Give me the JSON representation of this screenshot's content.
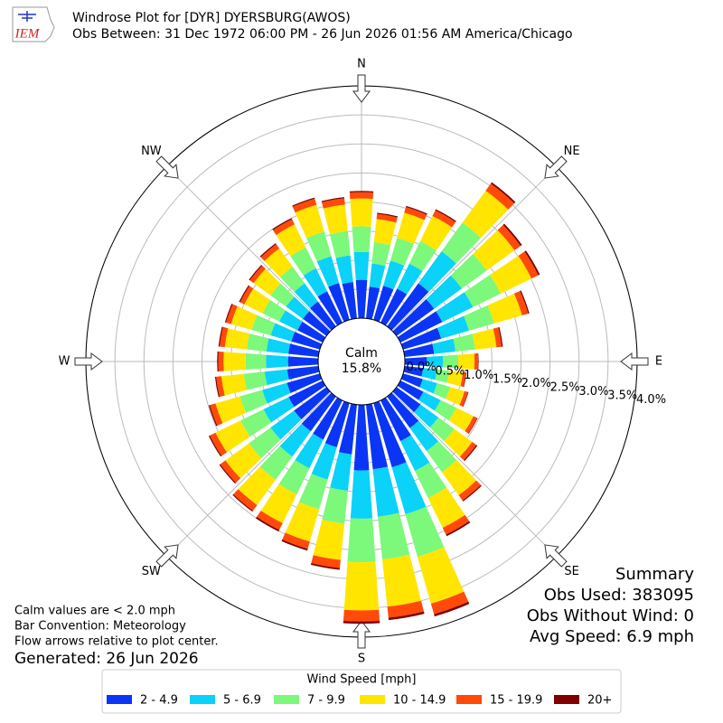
{
  "chart_data": {
    "type": "windrose",
    "logo": "IEM",
    "title": "Windrose Plot for [DYR] DYERSBURG(AWOS)",
    "subtitle": "Obs Between: 31 Dec 1972 06:00 PM - 26 Jun 2026 01:56 AM America/Chicago",
    "x": [
      0,
      10,
      20,
      30,
      40,
      50,
      60,
      70,
      80,
      90,
      100,
      110,
      120,
      130,
      140,
      150,
      160,
      170,
      180,
      190,
      200,
      210,
      220,
      230,
      240,
      250,
      260,
      270,
      280,
      290,
      300,
      310,
      320,
      330,
      340,
      350
    ],
    "xticks": [
      {
        "value": 0,
        "label": "N"
      },
      {
        "value": 45,
        "label": "NE"
      },
      {
        "value": 90,
        "label": "E"
      },
      {
        "value": 135,
        "label": "SE"
      },
      {
        "value": 180,
        "label": "S"
      },
      {
        "value": 225,
        "label": "SW"
      },
      {
        "value": 270,
        "label": "W"
      },
      {
        "value": 315,
        "label": "NW"
      }
    ],
    "rlim": [
      0,
      4.0
    ],
    "rticks": [
      {
        "value": 0,
        "label": "0.0%"
      },
      {
        "value": 0.5,
        "label": "0.5%"
      },
      {
        "value": 1.0,
        "label": "1.0%"
      },
      {
        "value": 1.5,
        "label": "1.5%"
      },
      {
        "value": 2.0,
        "label": "2.0%"
      },
      {
        "value": 2.5,
        "label": "2.5%"
      },
      {
        "value": 3.0,
        "label": "3.0%"
      },
      {
        "value": 3.5,
        "label": "3.5%"
      },
      {
        "value": 4.0,
        "label": "4.0%"
      }
    ],
    "grid": true,
    "calm": {
      "label": "Calm",
      "value": 15.8,
      "value_label": "15.8%"
    },
    "legend_title": "Wind Speed [mph]",
    "series": [
      {
        "name": "2 - 4.9",
        "color": "#0b35f5",
        "values": [
          0.66,
          0.55,
          0.61,
          0.65,
          0.92,
          0.8,
          0.8,
          0.68,
          0.51,
          0.38,
          0.32,
          0.35,
          0.44,
          0.51,
          0.67,
          0.78,
          1.15,
          1.12,
          1.13,
          0.86,
          0.79,
          0.75,
          0.74,
          0.69,
          0.65,
          0.59,
          0.54,
          0.52,
          0.52,
          0.51,
          0.48,
          0.5,
          0.53,
          0.6,
          0.66,
          0.63
        ]
      },
      {
        "name": "5 - 6.9",
        "color": "#0ad2f8",
        "values": [
          0.48,
          0.4,
          0.45,
          0.48,
          0.68,
          0.59,
          0.59,
          0.5,
          0.37,
          0.28,
          0.24,
          0.26,
          0.33,
          0.38,
          0.49,
          0.57,
          0.84,
          0.82,
          0.83,
          0.63,
          0.58,
          0.55,
          0.54,
          0.5,
          0.48,
          0.44,
          0.39,
          0.38,
          0.38,
          0.37,
          0.35,
          0.36,
          0.39,
          0.44,
          0.48,
          0.46
        ]
      },
      {
        "name": "7 - 9.9",
        "color": "#7cf87a",
        "values": [
          0.44,
          0.37,
          0.41,
          0.43,
          0.61,
          0.53,
          0.53,
          0.45,
          0.34,
          0.26,
          0.21,
          0.23,
          0.3,
          0.34,
          0.45,
          0.52,
          0.76,
          0.74,
          0.75,
          0.57,
          0.53,
          0.5,
          0.49,
          0.46,
          0.44,
          0.4,
          0.36,
          0.35,
          0.34,
          0.34,
          0.32,
          0.33,
          0.35,
          0.4,
          0.44,
          0.42
        ]
      },
      {
        "name": "10 - 14.9",
        "color": "#ffe500",
        "values": [
          0.48,
          0.4,
          0.45,
          0.48,
          0.68,
          0.59,
          0.59,
          0.5,
          0.37,
          0.28,
          0.24,
          0.26,
          0.33,
          0.38,
          0.49,
          0.57,
          0.84,
          0.82,
          0.83,
          0.63,
          0.58,
          0.55,
          0.54,
          0.5,
          0.48,
          0.44,
          0.39,
          0.38,
          0.38,
          0.37,
          0.35,
          0.36,
          0.39,
          0.44,
          0.48,
          0.46
        ]
      },
      {
        "name": "15 - 19.9",
        "color": "#ff4a0a",
        "values": [
          0.11,
          0.09,
          0.1,
          0.11,
          0.15,
          0.13,
          0.13,
          0.11,
          0.09,
          0.06,
          0.05,
          0.06,
          0.07,
          0.09,
          0.11,
          0.13,
          0.19,
          0.19,
          0.19,
          0.14,
          0.13,
          0.13,
          0.12,
          0.11,
          0.11,
          0.1,
          0.09,
          0.09,
          0.09,
          0.09,
          0.08,
          0.08,
          0.09,
          0.1,
          0.11,
          0.11
        ]
      },
      {
        "name": "20+",
        "color": "#800000",
        "values": [
          0.02,
          0.02,
          0.02,
          0.02,
          0.03,
          0.03,
          0.03,
          0.02,
          0.02,
          0.01,
          0.01,
          0.01,
          0.01,
          0.02,
          0.02,
          0.03,
          0.04,
          0.04,
          0.04,
          0.03,
          0.03,
          0.03,
          0.02,
          0.02,
          0.02,
          0.02,
          0.02,
          0.02,
          0.02,
          0.02,
          0.02,
          0.02,
          0.02,
          0.02,
          0.02,
          0.02
        ]
      }
    ],
    "notes": [
      "Calm values are < 2.0 mph",
      "Bar Convention: Meteorology",
      "Flow arrows relative to plot center."
    ],
    "generated": "Generated: 26 Jun 2026",
    "summary": [
      "Summary",
      "Obs Used: 383095",
      "Obs Without Wind: 0",
      "Avg Speed: 6.9 mph"
    ]
  }
}
